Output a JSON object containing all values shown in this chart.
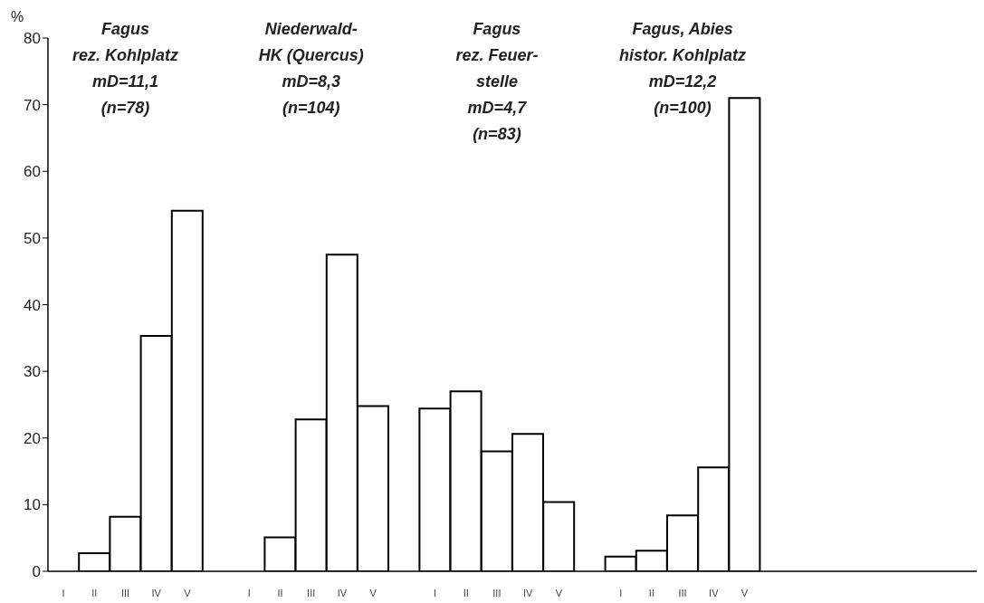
{
  "chart_data": {
    "type": "bar",
    "ylabel": "%",
    "categories": [
      "I",
      "II",
      "III",
      "IV",
      "V",
      null,
      "I",
      "II",
      "III",
      "IV",
      "V",
      null,
      "I",
      "II",
      "III",
      "IV",
      "V",
      null,
      "I",
      "II",
      "III",
      "IV",
      "V",
      null,
      null,
      null,
      null,
      null,
      null,
      null
    ],
    "values": [
      0,
      2.7,
      8.2,
      35.3,
      54.1,
      null,
      0,
      5.1,
      22.8,
      47.5,
      24.8,
      null,
      24.4,
      27.0,
      18.0,
      20.6,
      10.4,
      null,
      2.2,
      3.1,
      8.4,
      15.6,
      71.0,
      null,
      null,
      null,
      null,
      null,
      null,
      null
    ],
    "color": "#ffffff",
    "ylim": [
      0,
      80
    ],
    "yticks": [
      0,
      10,
      20,
      30,
      40,
      50,
      60,
      70,
      80
    ],
    "grid": false,
    "legend": false,
    "annotations": [
      "Fagus\nrez. Kohlplatz\nmD=11,1\n(n=78)",
      "Niederwald-\nHK (Quercus)\nmD=8,3\n(n=104)",
      "Fagus\nrez. Feuer-\nstelle\nmD=4,7\n(n=83)",
      "Fagus, Abies\nhistor. Kohlplatz\nmD=12,2\n(n=100)"
    ]
  }
}
